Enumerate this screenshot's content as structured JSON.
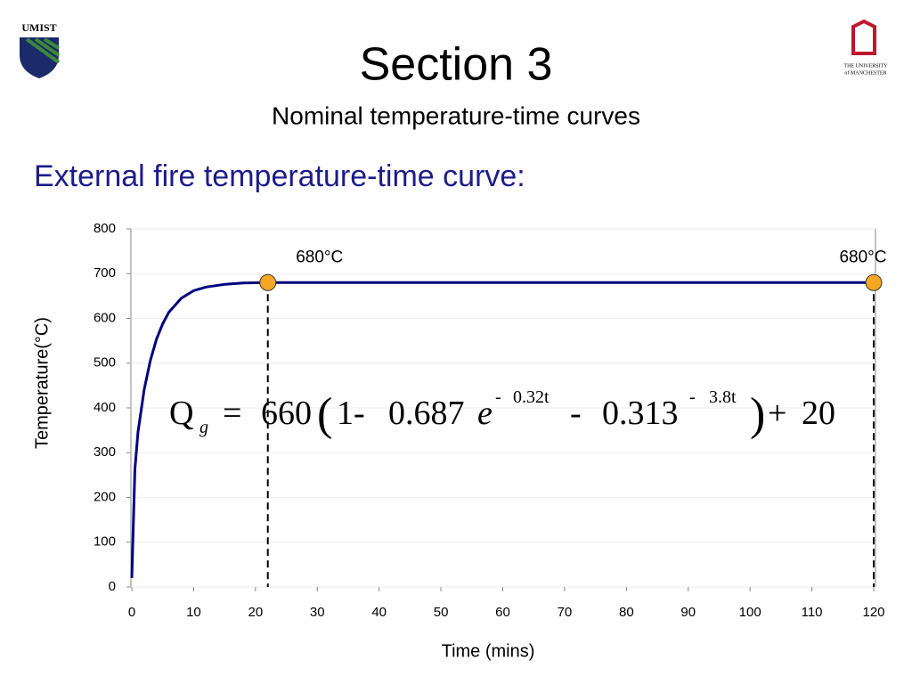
{
  "slide": {
    "title": "Section 3",
    "subtitle": "Nominal temperature-time curves",
    "heading": "External fire temperature-time curve:",
    "left_logo": "UMIST",
    "right_logo": [
      "THE UNIVERSITY",
      "of MANCHESTER"
    ],
    "formula": [
      "Q",
      "g",
      "=",
      "660",
      "(",
      "1-",
      "0.687",
      "e",
      "-",
      "0.32t",
      "-",
      "0.313",
      "-",
      "3.8t",
      ")",
      "+",
      "20"
    ]
  },
  "chart_data": {
    "type": "line",
    "xlabel": "Time (mins)",
    "ylabel": "Temperature(°C)",
    "xlim": [
      0,
      120
    ],
    "xticks": [
      0,
      10,
      20,
      30,
      40,
      50,
      60,
      70,
      80,
      90,
      100,
      110,
      120
    ],
    "ylim": [
      0,
      800
    ],
    "yticks": [
      0,
      100,
      200,
      300,
      400,
      500,
      600,
      700,
      800
    ],
    "grid": true,
    "series": [
      {
        "color": "#000080",
        "x": [
          0,
          0.5,
          1,
          2,
          3,
          4,
          5,
          6,
          8,
          10,
          12,
          15,
          18,
          22,
          120
        ],
        "values": [
          20,
          263,
          346,
          441,
          506,
          554,
          588,
          614,
          645,
          662,
          670,
          676,
          679,
          680,
          680
        ]
      },
      {
        "type": "scatter",
        "color": "#f5a623",
        "x": [
          22,
          120
        ],
        "values": [
          680,
          680
        ],
        "value_labels": [
          "680°C",
          "680°C"
        ]
      }
    ]
  }
}
